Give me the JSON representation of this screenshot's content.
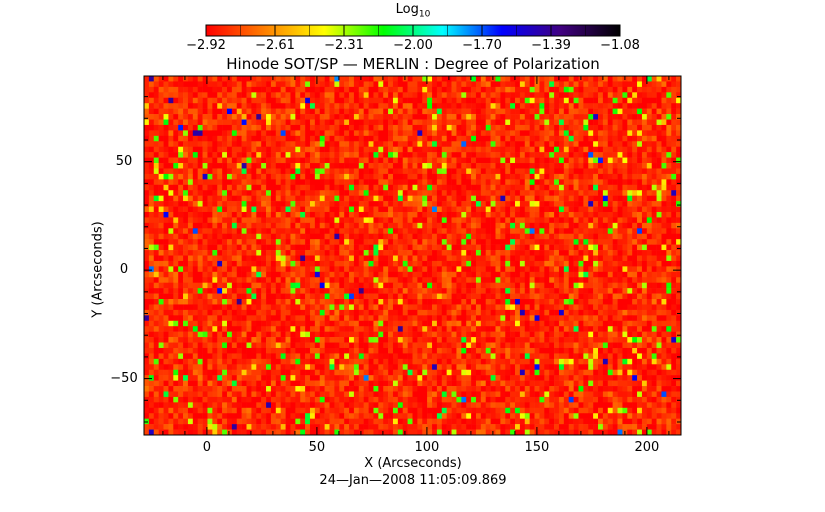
{
  "chart_data": {
    "type": "heatmap",
    "title": "Hinode SOT/SP — MERLIN : Degree of Polarization",
    "xlabel": "X (Arcseconds)",
    "ylabel": "Y (Arcseconds)",
    "footer": "24—Jan—2008 11:05:09.869",
    "xlim": [
      -28.6,
      215.5
    ],
    "ylim": [
      -76,
      89.5
    ],
    "xticks": [
      0,
      50,
      100,
      150,
      200
    ],
    "xtick_labels": [
      "0",
      "50",
      "100",
      "150",
      "200"
    ],
    "yticks": [
      50,
      0,
      -50
    ],
    "ytick_labels": [
      "50",
      "0",
      "−50"
    ],
    "colorbar": {
      "title": "Log",
      "title_sub": "10",
      "range": [
        -2.92,
        -1.08
      ],
      "tick_labels": [
        "−2.92",
        "−2.61",
        "−2.31",
        "−2.00",
        "−1.70",
        "−1.39",
        "−1.08"
      ],
      "colormap": [
        "#ff0000",
        "#ff8000",
        "#ffff00",
        "#00ff00",
        "#00ffff",
        "#0000ff",
        "#400080",
        "#000000"
      ]
    },
    "field": {
      "typical_value": -2.85,
      "spread": 0.18,
      "note_grid": [
        110,
        66
      ]
    }
  }
}
